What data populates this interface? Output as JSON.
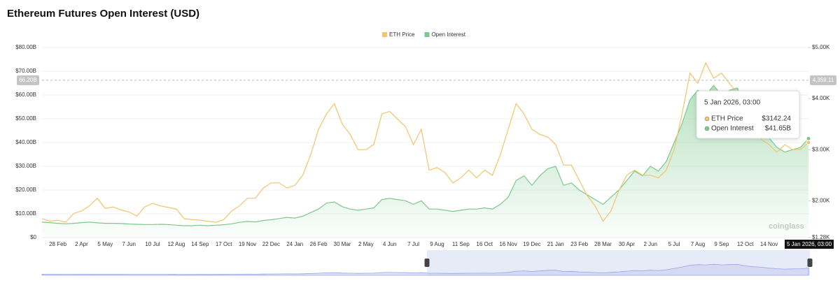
{
  "chart_data": {
    "type": "line",
    "title": "Ethereum Futures Open Interest (USD)",
    "categories": [
      null,
      null,
      "28 Feb",
      null,
      null,
      "2 Apr",
      null,
      null,
      "5 May",
      null,
      null,
      "7 Jun",
      null,
      null,
      "10 Jul",
      null,
      null,
      "12 Aug",
      null,
      null,
      "14 Sep",
      null,
      null,
      "17 Oct",
      null,
      null,
      "19 Nov",
      null,
      null,
      "22 Dec",
      null,
      null,
      "24 Jan",
      null,
      null,
      "26 Feb",
      null,
      null,
      "30 Mar",
      null,
      null,
      "2 May",
      null,
      null,
      "4 Jun",
      null,
      null,
      "7 Jul",
      null,
      null,
      "9 Aug",
      null,
      null,
      "11 Sep",
      null,
      null,
      "16 Oct",
      null,
      null,
      "16 Nov",
      null,
      null,
      "19 Dec",
      null,
      null,
      "21 Jan",
      null,
      null,
      "23 Feb",
      null,
      null,
      "28 Mar",
      null,
      null,
      "30 Apr",
      null,
      null,
      "2 Jun",
      null,
      null,
      "5 Jul",
      null,
      null,
      "7 Aug",
      null,
      null,
      "9 Sep",
      null,
      null,
      "12 Oct",
      null,
      null,
      "14 Nov",
      null,
      null,
      null,
      null,
      "5 Jan 2026, 03:00"
    ],
    "series": [
      {
        "name": "ETH Price",
        "color": "#f2c46d",
        "axis": "y2",
        "values": [
          1650,
          1600,
          1620,
          1580,
          1750,
          1800,
          1900,
          2050,
          1850,
          1880,
          1820,
          1780,
          1700,
          1880,
          1950,
          1900,
          1870,
          1840,
          1650,
          1630,
          1620,
          1600,
          1580,
          1630,
          1800,
          1900,
          2050,
          2050,
          2250,
          2350,
          2350,
          2250,
          2300,
          2500,
          2900,
          3400,
          3700,
          3900,
          3500,
          3300,
          3000,
          3000,
          3100,
          3700,
          3750,
          3600,
          3450,
          3100,
          3400,
          2600,
          2650,
          2550,
          2350,
          2450,
          2600,
          2450,
          2600,
          2500,
          2900,
          3400,
          3900,
          3700,
          3400,
          3300,
          3250,
          3100,
          2700,
          2700,
          2400,
          2100,
          1900,
          1600,
          1800,
          2200,
          2500,
          2600,
          2500,
          2500,
          2450,
          2600,
          3000,
          3700,
          4500,
          4300,
          4700,
          4400,
          4500,
          4300,
          4100,
          3900,
          3600,
          3200,
          3100,
          2950,
          3100,
          3000,
          3000,
          3142.24
        ]
      },
      {
        "name": "Open Interest",
        "color": "#7cc98c",
        "values": [
          6.5,
          6.3,
          6.0,
          5.8,
          6.0,
          6.3,
          6.5,
          6.2,
          6.0,
          6.0,
          5.9,
          5.7,
          5.6,
          5.5,
          5.5,
          5.6,
          5.5,
          5.2,
          5.0,
          5.0,
          5.2,
          5.0,
          5.2,
          5.4,
          5.8,
          6.4,
          6.8,
          6.6,
          7.2,
          7.5,
          8.0,
          8.5,
          8.2,
          9.0,
          10.5,
          12.0,
          14.5,
          15.0,
          13.0,
          12.0,
          11.5,
          12.0,
          12.5,
          16.0,
          16.5,
          16.0,
          15.5,
          14.0,
          15.5,
          12.0,
          12.0,
          11.5,
          11.0,
          11.5,
          12.0,
          12.0,
          12.5,
          12.0,
          14.0,
          17.0,
          24.0,
          26.0,
          22.0,
          26.0,
          29.0,
          30.0,
          22.0,
          23.0,
          20.0,
          18.0,
          16.0,
          14.0,
          17.0,
          20.0,
          24.0,
          28.0,
          26.0,
          30.0,
          28.0,
          32.0,
          40.0,
          48.0,
          58.0,
          62.0,
          60.0,
          64.0,
          60.0,
          62.0,
          63.0,
          55.0,
          50.0,
          47.0,
          42.0,
          38.0,
          36.0,
          37.0,
          38.0,
          41.65
        ]
      }
    ],
    "ylim": [
      0,
      80
    ],
    "yticks": [
      {
        "value": 0,
        "label": "$0"
      },
      {
        "value": 10,
        "label": "$10.00B"
      },
      {
        "value": 20,
        "label": "$20.00B"
      },
      {
        "value": 30,
        "label": "$30.00B"
      },
      {
        "value": 40,
        "label": "$40.00B"
      },
      {
        "value": 50,
        "label": "$50.00B"
      },
      {
        "value": 60,
        "label": "$60.00B"
      },
      {
        "value": 70,
        "label": "$70.00B"
      },
      {
        "value": 80,
        "label": "$80.00B"
      }
    ],
    "y2lim": [
      1280,
      5000
    ],
    "y2ticks": [
      {
        "value": 1280,
        "label": "$1.28K"
      },
      {
        "value": 2000,
        "label": "$2.00K"
      },
      {
        "value": 3000,
        "label": "$3.00K"
      },
      {
        "value": 4000,
        "label": "$4.00K"
      },
      {
        "value": 5000,
        "label": "$5.00K"
      }
    ],
    "grid": true,
    "legend": "top",
    "crosshair": {
      "y": 66.2,
      "y_label": "66.20B",
      "y2_label": "4,359.11"
    },
    "tooltip": {
      "title": "5 Jan 2026, 03:00",
      "rows": [
        {
          "label": "ETH Price",
          "value": "$3142.24"
        },
        {
          "label": "Open Interest",
          "value": "$41.65B"
        }
      ]
    },
    "watermark": "coinglass"
  }
}
